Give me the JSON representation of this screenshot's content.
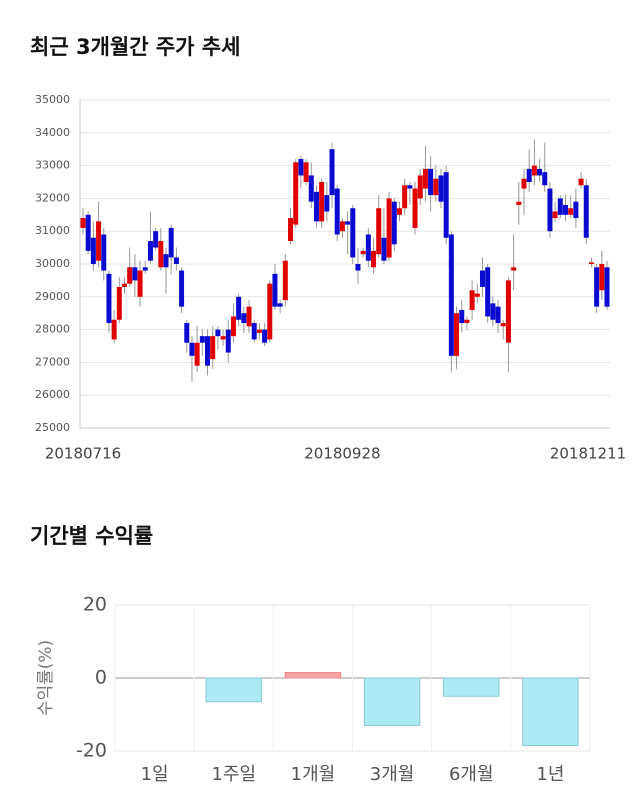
{
  "chart_data": [
    {
      "type": "candlestick",
      "title": "최근 3개월간 주가 추세",
      "categories": [
        "20180716",
        null,
        null,
        null,
        null,
        null,
        null,
        null,
        null,
        null,
        null,
        null,
        null,
        null,
        null,
        null,
        null,
        null,
        null,
        null,
        null,
        null,
        null,
        null,
        null,
        null,
        null,
        null,
        null,
        null,
        null,
        null,
        null,
        null,
        null,
        null,
        null,
        null,
        null,
        null,
        null,
        null,
        null,
        null,
        null,
        null,
        null,
        null,
        null,
        null,
        "20180928",
        null,
        null,
        null,
        null,
        null,
        null,
        null,
        null,
        null,
        null,
        null,
        null,
        null,
        null,
        null,
        null,
        null,
        null,
        null,
        null,
        null,
        null,
        null,
        null,
        null,
        null,
        null,
        null,
        null,
        null,
        null,
        null,
        null,
        null,
        null,
        null,
        null,
        null,
        null,
        null,
        null,
        null,
        null,
        null,
        null,
        null,
        null,
        null,
        null,
        null,
        "20181211"
      ],
      "open": [
        31100,
        31500,
        30800,
        30100,
        30900,
        29700,
        27700,
        28300,
        29300,
        29400,
        29900,
        29000,
        29900,
        30700,
        31000,
        29900,
        30300,
        31100,
        30200,
        29800,
        28200,
        27600,
        26900,
        27800,
        27800,
        27100,
        28000,
        27700,
        28000,
        27800,
        29000,
        28500,
        28100,
        28200,
        27900,
        28000,
        27700,
        29700,
        28800,
        28900,
        30700,
        31200,
        33200,
        32500,
        32700,
        32200,
        31300,
        32100,
        33500,
        32300,
        31000,
        31300,
        31700,
        30000,
        30300,
        30900,
        29900,
        30300,
        30800,
        30200,
        31900,
        31500,
        31700,
        32400,
        31100,
        32000,
        32300,
        32900,
        32100,
        32700,
        32800,
        30900,
        27200,
        28600,
        28200,
        28600,
        29000,
        29800,
        29900,
        28800,
        28700,
        28100,
        27600,
        29800,
        31800,
        32300,
        32900,
        32700,
        32900,
        32800,
        32300,
        31400,
        32000,
        31800,
        31500,
        31900,
        32400,
        32400,
        30000,
        29900,
        29200,
        29900
      ],
      "high": [
        31700,
        31600,
        31300,
        31900,
        31100,
        29800,
        28600,
        29600,
        29600,
        30500,
        30300,
        30100,
        30100,
        31600,
        31100,
        31100,
        30500,
        31200,
        30500,
        29900,
        28300,
        27800,
        28100,
        28000,
        28000,
        28100,
        28100,
        28000,
        28300,
        28800,
        29100,
        28700,
        28900,
        28300,
        28200,
        28200,
        29500,
        30000,
        28900,
        30300,
        31700,
        33200,
        33300,
        33200,
        33100,
        32400,
        32600,
        32500,
        33700,
        32400,
        31400,
        31600,
        31800,
        30500,
        30500,
        31100,
        30800,
        32100,
        31700,
        32200,
        32000,
        31900,
        32600,
        32500,
        32500,
        32900,
        33600,
        33300,
        33000,
        32900,
        33000,
        31000,
        28700,
        28900,
        28400,
        29500,
        29400,
        30200,
        30000,
        29000,
        28900,
        28300,
        29600,
        30900,
        32500,
        32900,
        33500,
        33800,
        33200,
        33700,
        32500,
        31900,
        32100,
        32100,
        32100,
        32300,
        32800,
        32600,
        30200,
        30000,
        30400,
        30100
      ],
      "low": [
        30900,
        30300,
        29800,
        29900,
        29500,
        27900,
        27600,
        28200,
        29100,
        29300,
        29000,
        28700,
        29700,
        30000,
        30400,
        29800,
        29100,
        29700,
        29800,
        28500,
        27300,
        26400,
        26700,
        27200,
        26600,
        26800,
        27400,
        27500,
        27000,
        27600,
        28100,
        27900,
        27900,
        27600,
        27700,
        27500,
        27600,
        28600,
        28500,
        28700,
        30600,
        31100,
        32300,
        32400,
        31700,
        31100,
        31100,
        31300,
        31700,
        30700,
        30800,
        30300,
        30000,
        29400,
        30200,
        29900,
        29700,
        30200,
        30000,
        30100,
        30400,
        31300,
        31500,
        31800,
        30900,
        31800,
        31900,
        31600,
        31900,
        31700,
        30600,
        26700,
        26800,
        27900,
        28000,
        28300,
        28800,
        29000,
        28200,
        28100,
        27900,
        27700,
        26700,
        29200,
        31200,
        31500,
        32200,
        32400,
        32500,
        32200,
        30800,
        31300,
        31400,
        31300,
        31400,
        31100,
        32300,
        30600,
        29900,
        28500,
        28900,
        28600
      ],
      "close": [
        31400,
        30400,
        30000,
        31300,
        29800,
        28200,
        28300,
        29300,
        29400,
        29900,
        29500,
        29800,
        29800,
        30100,
        30500,
        30700,
        29900,
        30200,
        30000,
        28700,
        27600,
        27200,
        27600,
        27600,
        26900,
        27800,
        27800,
        27800,
        27300,
        28400,
        28300,
        28200,
        28700,
        27700,
        28000,
        27600,
        29400,
        28700,
        28700,
        30100,
        31400,
        33100,
        32700,
        33100,
        31900,
        31300,
        32500,
        31600,
        32100,
        30900,
        31300,
        31200,
        30200,
        29800,
        30400,
        30100,
        30400,
        31700,
        30100,
        32000,
        30600,
        31700,
        32400,
        32300,
        32300,
        32700,
        32900,
        32100,
        32600,
        31900,
        30800,
        27200,
        28500,
        28200,
        28300,
        29200,
        29100,
        29300,
        28400,
        28300,
        28200,
        28200,
        29500,
        29900,
        31900,
        32600,
        32500,
        33000,
        32700,
        32400,
        31000,
        31600,
        31500,
        31500,
        31700,
        31400,
        32600,
        30800,
        30050,
        28700,
        30000,
        28700
      ],
      "up_color": "#e00000",
      "down_color": "#0a0ad0",
      "ylim": [
        25000,
        35000
      ],
      "yticks": [
        25000,
        26000,
        27000,
        28000,
        29000,
        30000,
        31000,
        32000,
        33000,
        34000,
        35000
      ],
      "grid": true
    },
    {
      "type": "bar",
      "title": "기간별 수익률",
      "y_label": "수익률(%)",
      "categories": [
        "1일",
        "1주일",
        "1개월",
        "3개월",
        "6개월",
        "1년"
      ],
      "values": [
        0,
        -6.5,
        1.5,
        -13,
        -5,
        -18.5
      ],
      "positive_color": "#f4a3a3",
      "negative_color": "#aeeaf3",
      "ylim": [
        -20,
        20
      ],
      "yticks": [
        -20,
        0,
        20
      ],
      "grid": true
    }
  ]
}
